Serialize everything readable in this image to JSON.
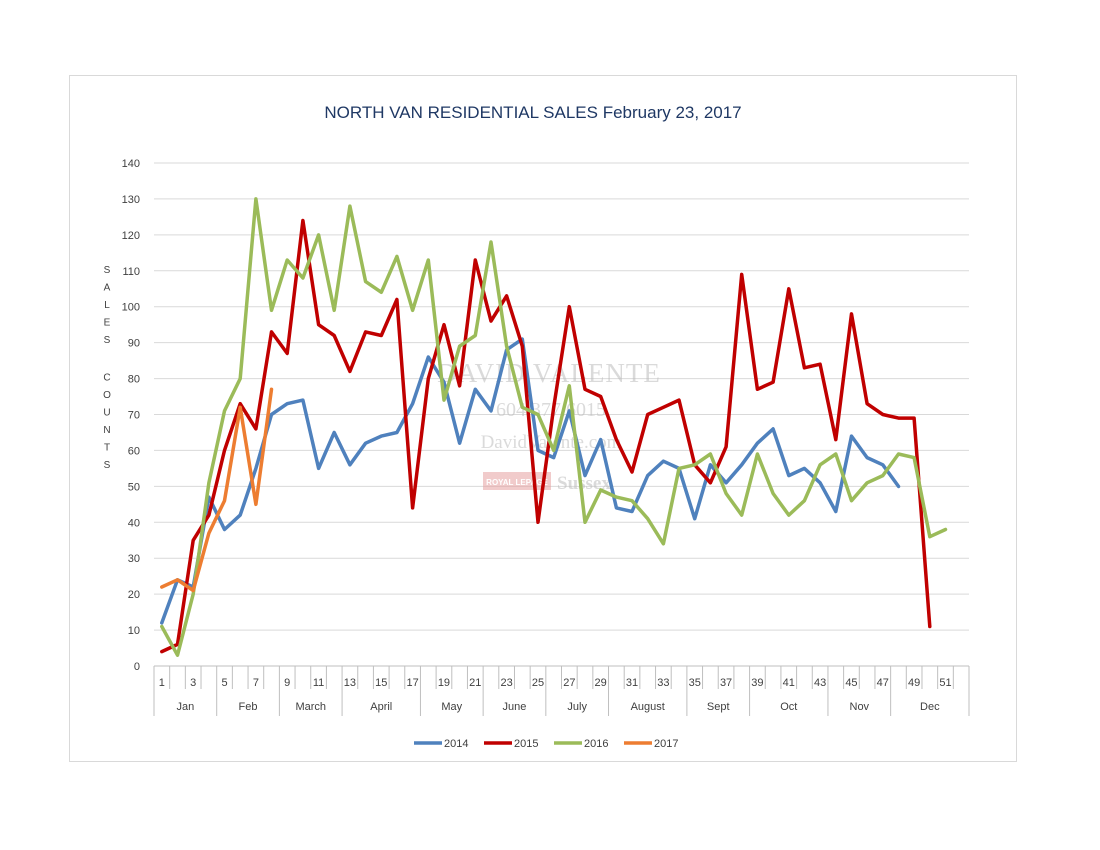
{
  "chart_data": {
    "type": "line",
    "title": "NORTH VAN RESIDENTIAL SALES February 23, 2017",
    "ylabel": "SALES COUNTS",
    "ylabel_lines": [
      "S",
      "A",
      "L",
      "E",
      "S",
      "",
      "C",
      "O",
      "U",
      "N",
      "T",
      "S"
    ],
    "ylim": [
      0,
      140
    ],
    "yticks": [
      0,
      10,
      20,
      30,
      40,
      50,
      60,
      70,
      80,
      90,
      100,
      110,
      120,
      130,
      140
    ],
    "x_range": [
      1,
      52
    ],
    "xticks": [
      "1",
      "3",
      "5",
      "7",
      "9",
      "11",
      "13",
      "15",
      "17",
      "19",
      "21",
      "23",
      "25",
      "27",
      "29",
      "31",
      "33",
      "35",
      "37",
      "39",
      "41",
      "43",
      "45",
      "47",
      "49",
      "51"
    ],
    "months": [
      {
        "label": "Jan",
        "start": 1,
        "end": 4
      },
      {
        "label": "Feb",
        "start": 5,
        "end": 8
      },
      {
        "label": "March",
        "start": 9,
        "end": 12
      },
      {
        "label": "April",
        "start": 13,
        "end": 17
      },
      {
        "label": "May",
        "start": 18,
        "end": 21
      },
      {
        "label": "June",
        "start": 22,
        "end": 25
      },
      {
        "label": "July",
        "start": 26,
        "end": 29
      },
      {
        "label": "August",
        "start": 30,
        "end": 34
      },
      {
        "label": "Sept",
        "start": 35,
        "end": 38
      },
      {
        "label": "Oct",
        "start": 39,
        "end": 43
      },
      {
        "label": "Nov",
        "start": 44,
        "end": 47
      },
      {
        "label": "Dec",
        "start": 48,
        "end": 52
      }
    ],
    "series": [
      {
        "name": "2014",
        "color": "#4f81bd",
        "values": [
          12,
          24,
          22,
          47,
          38,
          42,
          55,
          70,
          73,
          74,
          55,
          65,
          56,
          62,
          64,
          65,
          73,
          86,
          79,
          62,
          77,
          71,
          88,
          91,
          60,
          58,
          71,
          53,
          63,
          44,
          43,
          53,
          57,
          55,
          41,
          56,
          51,
          56,
          62,
          66,
          53,
          55,
          51,
          43,
          64,
          58,
          56,
          50
        ]
      },
      {
        "name": "2015",
        "color": "#c00000",
        "values": [
          4,
          6,
          35,
          42,
          60,
          73,
          66,
          93,
          87,
          124,
          95,
          92,
          82,
          93,
          92,
          102,
          44,
          80,
          95,
          78,
          113,
          96,
          103,
          89,
          40,
          72,
          100,
          77,
          75,
          63,
          54,
          70,
          72,
          74,
          56,
          51,
          61,
          109,
          77,
          79,
          105,
          83,
          84,
          63,
          98,
          73,
          70,
          69,
          69,
          11
        ]
      },
      {
        "name": "2016",
        "color": "#9bbb59",
        "values": [
          11,
          3,
          20,
          51,
          71,
          80,
          130,
          99,
          113,
          108,
          120,
          99,
          128,
          107,
          104,
          114,
          99,
          113,
          74,
          89,
          92,
          118,
          89,
          72,
          70,
          60,
          78,
          40,
          49,
          47,
          46,
          41,
          34,
          55,
          56,
          59,
          48,
          42,
          59,
          48,
          42,
          46,
          56,
          59,
          46,
          51,
          53,
          59,
          58,
          36,
          38
        ]
      },
      {
        "name": "2017",
        "color": "#ed7d31",
        "values": [
          22,
          24,
          21,
          37,
          46,
          72,
          45,
          77
        ]
      }
    ],
    "grid": true,
    "legend_position": "bottom"
  },
  "watermark": {
    "name": "DAVID VALENTE",
    "phone": "604.377.6015",
    "website": "DavidValente.com",
    "brokerage_badge": "ROYAL LEPAGE",
    "brokerage": "Sussex"
  }
}
